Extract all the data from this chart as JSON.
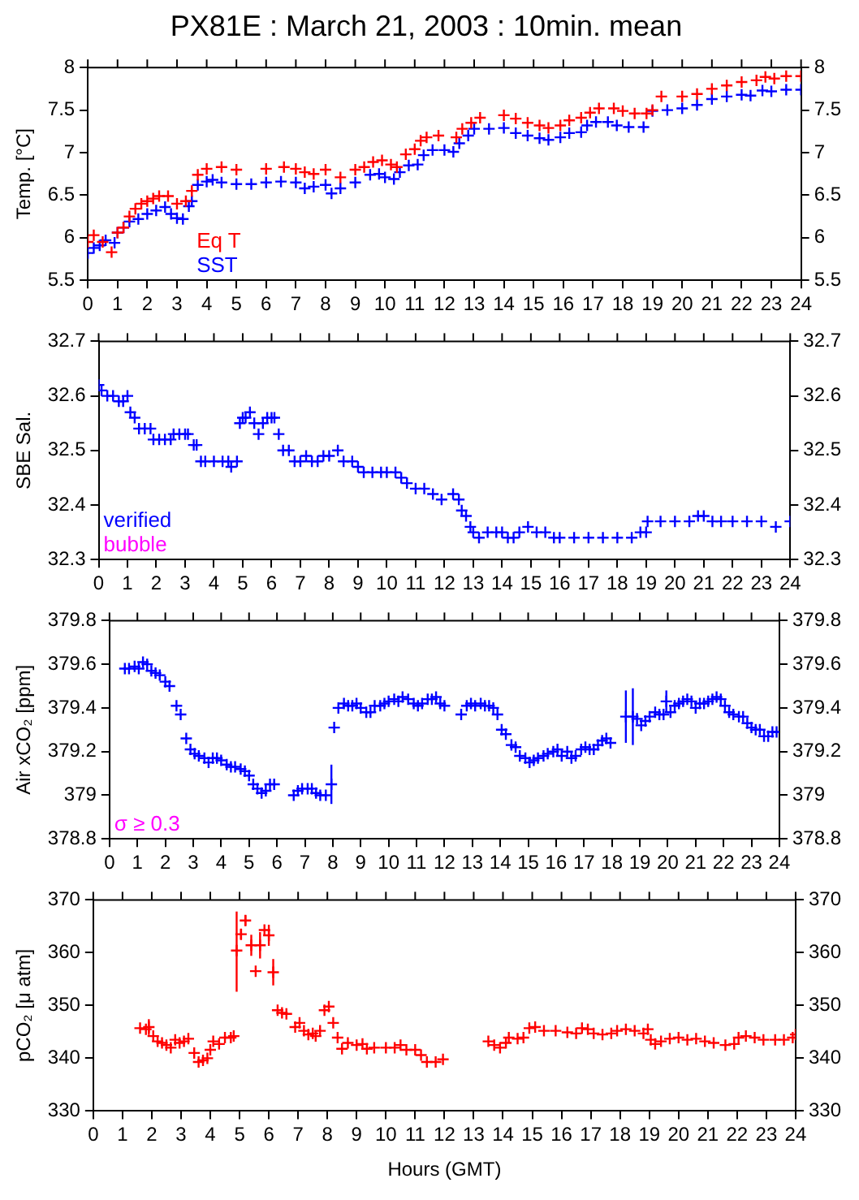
{
  "chart_data": [
    {
      "type": "scatter",
      "title": "PX81E : March 21, 2003 : 10min. mean",
      "ylabel": "Temp. [°C]",
      "marker": "cross",
      "legend": "bottom left",
      "xlim": [
        0,
        24
      ],
      "xticks": [
        0,
        1,
        2,
        3,
        4,
        5,
        6,
        7,
        8,
        9,
        10,
        11,
        12,
        13,
        14,
        15,
        16,
        17,
        18,
        19,
        20,
        21,
        22,
        23,
        24
      ],
      "ylim": [
        5.5,
        8
      ],
      "yticks": [
        5.5,
        6,
        6.5,
        7,
        7.5,
        8
      ],
      "y2lim": [
        5.5,
        8
      ],
      "y2ticks": [
        5.5,
        6,
        6.5,
        7,
        7.5,
        8
      ],
      "series": [
        {
          "name": "Eq T",
          "color": "#ff0000",
          "x": [
            0,
            0.2,
            0.5,
            0.8,
            1,
            1.2,
            1.4,
            1.6,
            1.8,
            2,
            2.2,
            2.4,
            2.7,
            3,
            3.3,
            3.5,
            3.7,
            4,
            4.5,
            5,
            6,
            6.6,
            7,
            7.3,
            7.6,
            8,
            8.5,
            9,
            9.3,
            9.6,
            9.9,
            10.2,
            10.4,
            10.7,
            11,
            11.2,
            11.4,
            11.8,
            12.4,
            12.6,
            12.9,
            13.2,
            14,
            14.4,
            14.8,
            15.2,
            15.5,
            15.9,
            16.2,
            16.6,
            16.9,
            17.2,
            17.7,
            18,
            18.4,
            18.8,
            19,
            19.3,
            20,
            20.5,
            21,
            21.5,
            22,
            22.5,
            22.8,
            23.1,
            23.5,
            24
          ],
          "values": [
            5.95,
            6.03,
            5.95,
            5.83,
            6.06,
            6.12,
            6.25,
            6.34,
            6.4,
            6.43,
            6.46,
            6.49,
            6.49,
            6.4,
            6.43,
            6.55,
            6.74,
            6.81,
            6.83,
            6.8,
            6.81,
            6.83,
            6.81,
            6.77,
            6.75,
            6.8,
            6.71,
            6.8,
            6.83,
            6.89,
            6.91,
            6.86,
            6.83,
            6.98,
            7.04,
            7.14,
            7.18,
            7.2,
            7.18,
            7.28,
            7.35,
            7.41,
            7.44,
            7.4,
            7.35,
            7.32,
            7.29,
            7.32,
            7.38,
            7.41,
            7.47,
            7.52,
            7.52,
            7.49,
            7.46,
            7.46,
            7.5,
            7.66,
            7.66,
            7.69,
            7.75,
            7.79,
            7.83,
            7.85,
            7.89,
            7.87,
            7.9,
            7.9
          ]
        },
        {
          "name": "SST",
          "color": "#0000ff",
          "x": [
            0,
            0.2,
            0.4,
            0.6,
            0.9,
            1,
            1.2,
            1.4,
            1.7,
            2,
            2.3,
            2.6,
            2.8,
            3,
            3.2,
            3.4,
            3.5,
            3.7,
            4,
            4.2,
            4.5,
            5,
            5.5,
            6,
            6.5,
            7,
            7.3,
            7.6,
            8,
            8.2,
            8.5,
            9,
            9.5,
            9.8,
            10,
            10.3,
            10.5,
            10.8,
            11.1,
            11.3,
            11.6,
            12,
            12.3,
            12.5,
            12.8,
            13,
            13.5,
            14,
            14.4,
            14.8,
            15.2,
            15.5,
            15.9,
            16.2,
            16.6,
            16.8,
            17.1,
            17.5,
            17.8,
            18.2,
            18.7,
            19,
            19.5,
            20,
            20.5,
            21,
            21.5,
            22,
            22.3,
            22.7,
            23,
            23.5,
            24
          ],
          "values": [
            5.82,
            5.88,
            5.91,
            5.97,
            5.94,
            6.06,
            6.12,
            6.19,
            6.22,
            6.28,
            6.32,
            6.36,
            6.28,
            6.23,
            6.22,
            6.37,
            6.43,
            6.62,
            6.66,
            6.68,
            6.65,
            6.63,
            6.63,
            6.65,
            6.66,
            6.65,
            6.58,
            6.6,
            6.62,
            6.52,
            6.58,
            6.65,
            6.74,
            6.75,
            6.71,
            6.69,
            6.77,
            6.85,
            6.86,
            6.97,
            7.03,
            7.03,
            7.01,
            7.11,
            7.2,
            7.28,
            7.28,
            7.29,
            7.23,
            7.2,
            7.17,
            7.15,
            7.18,
            7.23,
            7.24,
            7.32,
            7.36,
            7.36,
            7.32,
            7.3,
            7.3,
            7.49,
            7.5,
            7.52,
            7.56,
            7.63,
            7.66,
            7.68,
            7.67,
            7.73,
            7.72,
            7.74,
            7.74
          ]
        }
      ]
    },
    {
      "type": "scatter",
      "ylabel": "SBE Sal.",
      "marker": "cross",
      "legend": "bottom left",
      "annotations": [
        "bubble"
      ],
      "xlim": [
        0,
        24
      ],
      "xticks": [
        0,
        1,
        2,
        3,
        4,
        5,
        6,
        7,
        8,
        9,
        10,
        11,
        12,
        13,
        14,
        15,
        16,
        17,
        18,
        19,
        20,
        21,
        22,
        23,
        24
      ],
      "ylim": [
        32.3,
        32.7
      ],
      "yticks": [
        32.3,
        32.4,
        32.5,
        32.6,
        32.7
      ],
      "y2lim": [
        32.3,
        32.7
      ],
      "y2ticks": [
        32.3,
        32.4,
        32.5,
        32.6,
        32.7
      ],
      "series": [
        {
          "name": "verified",
          "color": "#0000ff",
          "x": [
            0,
            0.1,
            0.3,
            0.5,
            0.7,
            0.85,
            1,
            1.1,
            1.25,
            1.4,
            1.6,
            1.8,
            1.9,
            2.1,
            2.3,
            2.5,
            2.6,
            2.8,
            3,
            3.1,
            3.3,
            3.4,
            3.55,
            3.7,
            4,
            4.3,
            4.5,
            4.6,
            4.8,
            4.9,
            5,
            5.1,
            5.25,
            5.4,
            5.55,
            5.7,
            5.85,
            6,
            6.1,
            6.25,
            6.4,
            6.6,
            6.8,
            7,
            7.2,
            7.4,
            7.6,
            7.8,
            8,
            8.3,
            8.5,
            8.8,
            9,
            9.2,
            9.5,
            9.8,
            10,
            10.3,
            10.5,
            10.7,
            11,
            11.3,
            11.6,
            11.9,
            12.3,
            12.5,
            12.6,
            12.75,
            12.9,
            13,
            13.2,
            13.5,
            13.8,
            14,
            14.2,
            14.4,
            14.6,
            14.9,
            15.2,
            15.5,
            15.8,
            16,
            16.5,
            17,
            17.5,
            18,
            18.5,
            18.8,
            19,
            19.05,
            19.5,
            20,
            20.5,
            20.8,
            21,
            21.3,
            21.6,
            22,
            22.5,
            23,
            23.5,
            24
          ],
          "values": [
            32.62,
            32.61,
            32.6,
            32.6,
            32.59,
            32.59,
            32.6,
            32.57,
            32.56,
            32.54,
            32.54,
            32.54,
            32.52,
            32.52,
            32.52,
            32.52,
            32.53,
            32.53,
            32.53,
            32.53,
            32.51,
            32.51,
            32.48,
            32.48,
            32.48,
            32.48,
            32.48,
            32.47,
            32.48,
            32.55,
            32.56,
            32.56,
            32.57,
            32.55,
            32.53,
            32.55,
            32.56,
            32.56,
            32.56,
            32.53,
            32.5,
            32.5,
            32.48,
            32.48,
            32.49,
            32.48,
            32.48,
            32.49,
            32.49,
            32.5,
            32.48,
            32.48,
            32.47,
            32.46,
            32.46,
            32.46,
            32.46,
            32.46,
            32.45,
            32.44,
            32.43,
            32.43,
            32.42,
            32.41,
            32.42,
            32.41,
            32.39,
            32.38,
            32.36,
            32.35,
            32.34,
            32.35,
            32.35,
            32.35,
            32.34,
            32.34,
            32.35,
            32.36,
            32.35,
            32.35,
            32.34,
            32.34,
            32.34,
            32.34,
            32.34,
            32.34,
            32.34,
            32.35,
            32.35,
            32.37,
            32.37,
            32.37,
            32.37,
            32.38,
            32.38,
            32.37,
            32.37,
            32.37,
            32.37,
            32.37,
            32.36,
            32.37
          ]
        }
      ]
    },
    {
      "type": "scatter",
      "ylabel": "Air xCO₂ [ppm]",
      "marker": "cross",
      "annotations": [
        "σ ≥ 0.3"
      ],
      "xlim": [
        0,
        24
      ],
      "xticks": [
        0,
        1,
        2,
        3,
        4,
        5,
        6,
        7,
        8,
        9,
        10,
        11,
        12,
        13,
        14,
        15,
        16,
        17,
        18,
        19,
        20,
        21,
        22,
        23,
        24
      ],
      "ylim": [
        378.8,
        379.8
      ],
      "yticks": [
        378.8,
        379,
        379.2,
        379.4,
        379.6,
        379.8
      ],
      "y2lim": [
        378.8,
        379.8
      ],
      "y2ticks": [
        378.8,
        379,
        379.2,
        379.4,
        379.6,
        379.8
      ],
      "series": [
        {
          "color": "#0000ff",
          "x": [
            0.55,
            0.7,
            0.9,
            1.05,
            1.2,
            1.35,
            1.5,
            1.65,
            1.8,
            2,
            2.15,
            2.4,
            2.55,
            2.75,
            2.9,
            3.05,
            3.2,
            3.4,
            3.55,
            3.7,
            3.85,
            4,
            4.2,
            4.35,
            4.5,
            4.7,
            4.85,
            5,
            5.15,
            5.3,
            5.45,
            5.6,
            5.75,
            5.9,
            6.6,
            6.75,
            6.9,
            7.1,
            7.25,
            7.4,
            7.55,
            7.75,
            7.95,
            8.05,
            8.2,
            8.4,
            8.55,
            8.7,
            8.85,
            9,
            9.2,
            9.35,
            9.5,
            9.7,
            9.85,
            10,
            10.2,
            10.35,
            10.5,
            10.7,
            10.9,
            11.05,
            11.2,
            11.4,
            11.55,
            11.7,
            11.85,
            12,
            12.6,
            12.8,
            12.95,
            13.1,
            13.3,
            13.45,
            13.6,
            13.75,
            13.9,
            14.05,
            14.2,
            14.4,
            14.55,
            14.7,
            14.9,
            15.05,
            15.2,
            15.35,
            15.55,
            15.7,
            15.9,
            16.05,
            16.2,
            16.4,
            16.55,
            16.7,
            16.9,
            17.05,
            17.2,
            17.35,
            17.5,
            17.65,
            17.8,
            17.95,
            18.5,
            18.75,
            18.9,
            19.05,
            19.2,
            19.35,
            19.55,
            19.7,
            19.85,
            19.95,
            20.1,
            20.25,
            20.4,
            20.55,
            20.7,
            20.85,
            21,
            21.15,
            21.3,
            21.45,
            21.6,
            21.75,
            21.9,
            22.05,
            22.2,
            22.35,
            22.55,
            22.7,
            22.85,
            23,
            23.15,
            23.3,
            23.45,
            23.6,
            23.75,
            23.9
          ],
          "values": [
            379.58,
            379.58,
            379.59,
            379.58,
            379.61,
            379.6,
            379.57,
            379.56,
            379.55,
            379.52,
            379.5,
            379.41,
            379.37,
            379.26,
            379.21,
            379.19,
            379.18,
            379.17,
            379.15,
            379.17,
            379.17,
            379.16,
            379.14,
            379.13,
            379.13,
            379.12,
            379.11,
            379.09,
            379.05,
            379.03,
            379.01,
            379.02,
            379.05,
            379.05,
            379,
            379.02,
            379.03,
            379.03,
            379.03,
            379.01,
            379,
            379,
            379.05,
            379.31,
            379.4,
            379.42,
            379.41,
            379.41,
            379.42,
            379.4,
            379.38,
            379.38,
            379.41,
            379.41,
            379.42,
            379.43,
            379.44,
            379.43,
            379.45,
            379.44,
            379.42,
            379.41,
            379.42,
            379.44,
            379.44,
            379.45,
            379.42,
            379.41,
            379.37,
            379.41,
            379.42,
            379.41,
            379.42,
            379.41,
            379.41,
            379.4,
            379.37,
            379.3,
            379.28,
            379.23,
            379.22,
            379.18,
            379.17,
            379.15,
            379.16,
            379.17,
            379.18,
            379.19,
            379.2,
            379.21,
            379.18,
            379.2,
            379.17,
            379.18,
            379.21,
            379.22,
            379.21,
            379.21,
            379.23,
            379.25,
            379.26,
            379.24,
            379.36,
            379.36,
            379.35,
            379.32,
            379.34,
            379.36,
            379.38,
            379.37,
            379.37,
            379.43,
            379.38,
            379.41,
            379.42,
            379.43,
            379.44,
            379.43,
            379.4,
            379.42,
            379.42,
            379.43,
            379.44,
            379.45,
            379.44,
            379.41,
            379.38,
            379.37,
            379.36,
            379.36,
            379.33,
            379.31,
            379.3,
            379.3,
            379.27,
            379.27,
            379.29,
            379.29
          ],
          "errors": [
            null,
            null,
            null,
            null,
            null,
            null,
            null,
            null,
            null,
            null,
            null,
            null,
            null,
            null,
            null,
            null,
            null,
            null,
            null,
            null,
            null,
            null,
            null,
            null,
            null,
            null,
            null,
            null,
            null,
            null,
            null,
            null,
            null,
            null,
            null,
            null,
            null,
            null,
            null,
            null,
            null,
            null,
            0.09,
            null,
            null,
            null,
            null,
            null,
            null,
            null,
            null,
            null,
            null,
            null,
            null,
            null,
            null,
            null,
            null,
            null,
            null,
            null,
            null,
            null,
            null,
            null,
            null,
            null,
            null,
            null,
            null,
            null,
            null,
            null,
            null,
            null,
            null,
            null,
            null,
            null,
            null,
            null,
            null,
            null,
            null,
            null,
            null,
            null,
            null,
            null,
            null,
            null,
            null,
            null,
            null,
            null,
            null,
            null,
            null,
            null,
            null,
            null,
            0.12,
            0.13,
            null,
            null,
            null,
            null,
            null,
            null,
            null,
            0.05,
            null,
            null,
            null,
            null,
            null,
            null,
            null,
            null,
            null,
            null,
            null,
            null,
            null,
            null,
            null,
            null,
            null,
            null,
            null,
            null,
            null,
            null,
            null,
            null,
            null,
            null
          ]
        }
      ]
    },
    {
      "type": "scatter",
      "ylabel": "pCO₂ [μ atm]",
      "xlabel": "Hours (GMT)",
      "marker": "cross",
      "xlim": [
        0,
        24
      ],
      "xticks": [
        0,
        1,
        2,
        3,
        4,
        5,
        6,
        7,
        8,
        9,
        10,
        11,
        12,
        13,
        14,
        15,
        16,
        17,
        18,
        19,
        20,
        21,
        22,
        23,
        24
      ],
      "ylim": [
        330,
        370
      ],
      "yticks": [
        330,
        340,
        350,
        360,
        370
      ],
      "y2lim": [
        330,
        370
      ],
      "y2ticks": [
        330,
        340,
        350,
        360,
        370
      ],
      "series": [
        {
          "color": "#ff0000",
          "x": [
            1.6,
            1.8,
            1.9,
            2.05,
            2.2,
            2.35,
            2.5,
            2.65,
            2.8,
            2.95,
            3.1,
            3.25,
            3.45,
            3.6,
            3.75,
            3.9,
            4,
            4.1,
            4.3,
            4.5,
            4.7,
            4.8,
            4.9,
            5.05,
            5.2,
            5.4,
            5.55,
            5.7,
            5.85,
            6,
            6.15,
            6.3,
            6.45,
            6.6,
            6.9,
            7.05,
            7.2,
            7.35,
            7.5,
            7.6,
            7.75,
            7.9,
            8.05,
            8.2,
            8.35,
            8.5,
            8.7,
            9,
            9.2,
            9.35,
            9.6,
            10,
            10.3,
            10.5,
            10.7,
            11,
            11.2,
            11.4,
            11.7,
            11.95,
            13.5,
            13.7,
            13.9,
            14.1,
            14.2,
            14.5,
            14.7,
            14.9,
            15.1,
            15.4,
            15.8,
            16.2,
            16.5,
            16.7,
            16.9,
            17.1,
            17.4,
            17.7,
            17.9,
            18.2,
            18.5,
            18.8,
            18.95,
            19.05,
            19.2,
            19.4,
            19.7,
            20,
            20.3,
            20.6,
            20.9,
            21.2,
            21.6,
            21.9,
            22.05,
            22.3,
            22.6,
            22.9,
            23.3,
            23.6,
            23.9,
            24
          ],
          "values": [
            345.7,
            345.5,
            345.9,
            344.2,
            343.2,
            342.9,
            342.5,
            342,
            343.5,
            342.9,
            343.2,
            343.7,
            341,
            339.3,
            339.6,
            340,
            341.6,
            343.2,
            342.7,
            343.9,
            343.9,
            344.2,
            360.4,
            363.5,
            366.1,
            361.4,
            356.5,
            361.4,
            364.3,
            363.3,
            356.3,
            349.1,
            348.6,
            348.4,
            345.9,
            346.7,
            345.2,
            344.5,
            344.7,
            344.2,
            345.2,
            349.1,
            349.8,
            346.7,
            343.9,
            341.8,
            342.9,
            342.5,
            342.7,
            341.8,
            342,
            342,
            342,
            342.5,
            341.6,
            341.6,
            340.6,
            339.3,
            339.3,
            339.8,
            343.2,
            342.5,
            342,
            342.9,
            343.9,
            343.7,
            343.9,
            345.7,
            345.9,
            345.2,
            345.2,
            344.9,
            344.7,
            345.7,
            345.5,
            344.7,
            344.5,
            344.7,
            345.2,
            345.5,
            345.2,
            344.7,
            345.5,
            343.5,
            342.7,
            343.2,
            343.7,
            343.9,
            343.5,
            343.7,
            343.2,
            342.9,
            342.5,
            342.7,
            343.9,
            344.2,
            343.9,
            343.5,
            343.5,
            343.5,
            343.9,
            344.5
          ],
          "errors": [
            null,
            null,
            1.5,
            null,
            null,
            null,
            null,
            null,
            null,
            null,
            null,
            null,
            null,
            null,
            null,
            null,
            null,
            null,
            null,
            null,
            null,
            null,
            [
              352.6,
              367.8
            ],
            1,
            1,
            2,
            null,
            2.5,
            null,
            2,
            2.5,
            null,
            null,
            null,
            null,
            null,
            null,
            null,
            null,
            null,
            null,
            null,
            null,
            null,
            null,
            null,
            null,
            null,
            null,
            null,
            null,
            null,
            null,
            null,
            null,
            null,
            null,
            null,
            null,
            null,
            null,
            null,
            null,
            null,
            null,
            null,
            null,
            null,
            null,
            null,
            null,
            null,
            null,
            null,
            null,
            null,
            null,
            null,
            null,
            null,
            null,
            null,
            null,
            null,
            null,
            null,
            null,
            null,
            null,
            null,
            null,
            null,
            null,
            null,
            null,
            null,
            null,
            null,
            null,
            null,
            null,
            null
          ]
        }
      ]
    }
  ]
}
